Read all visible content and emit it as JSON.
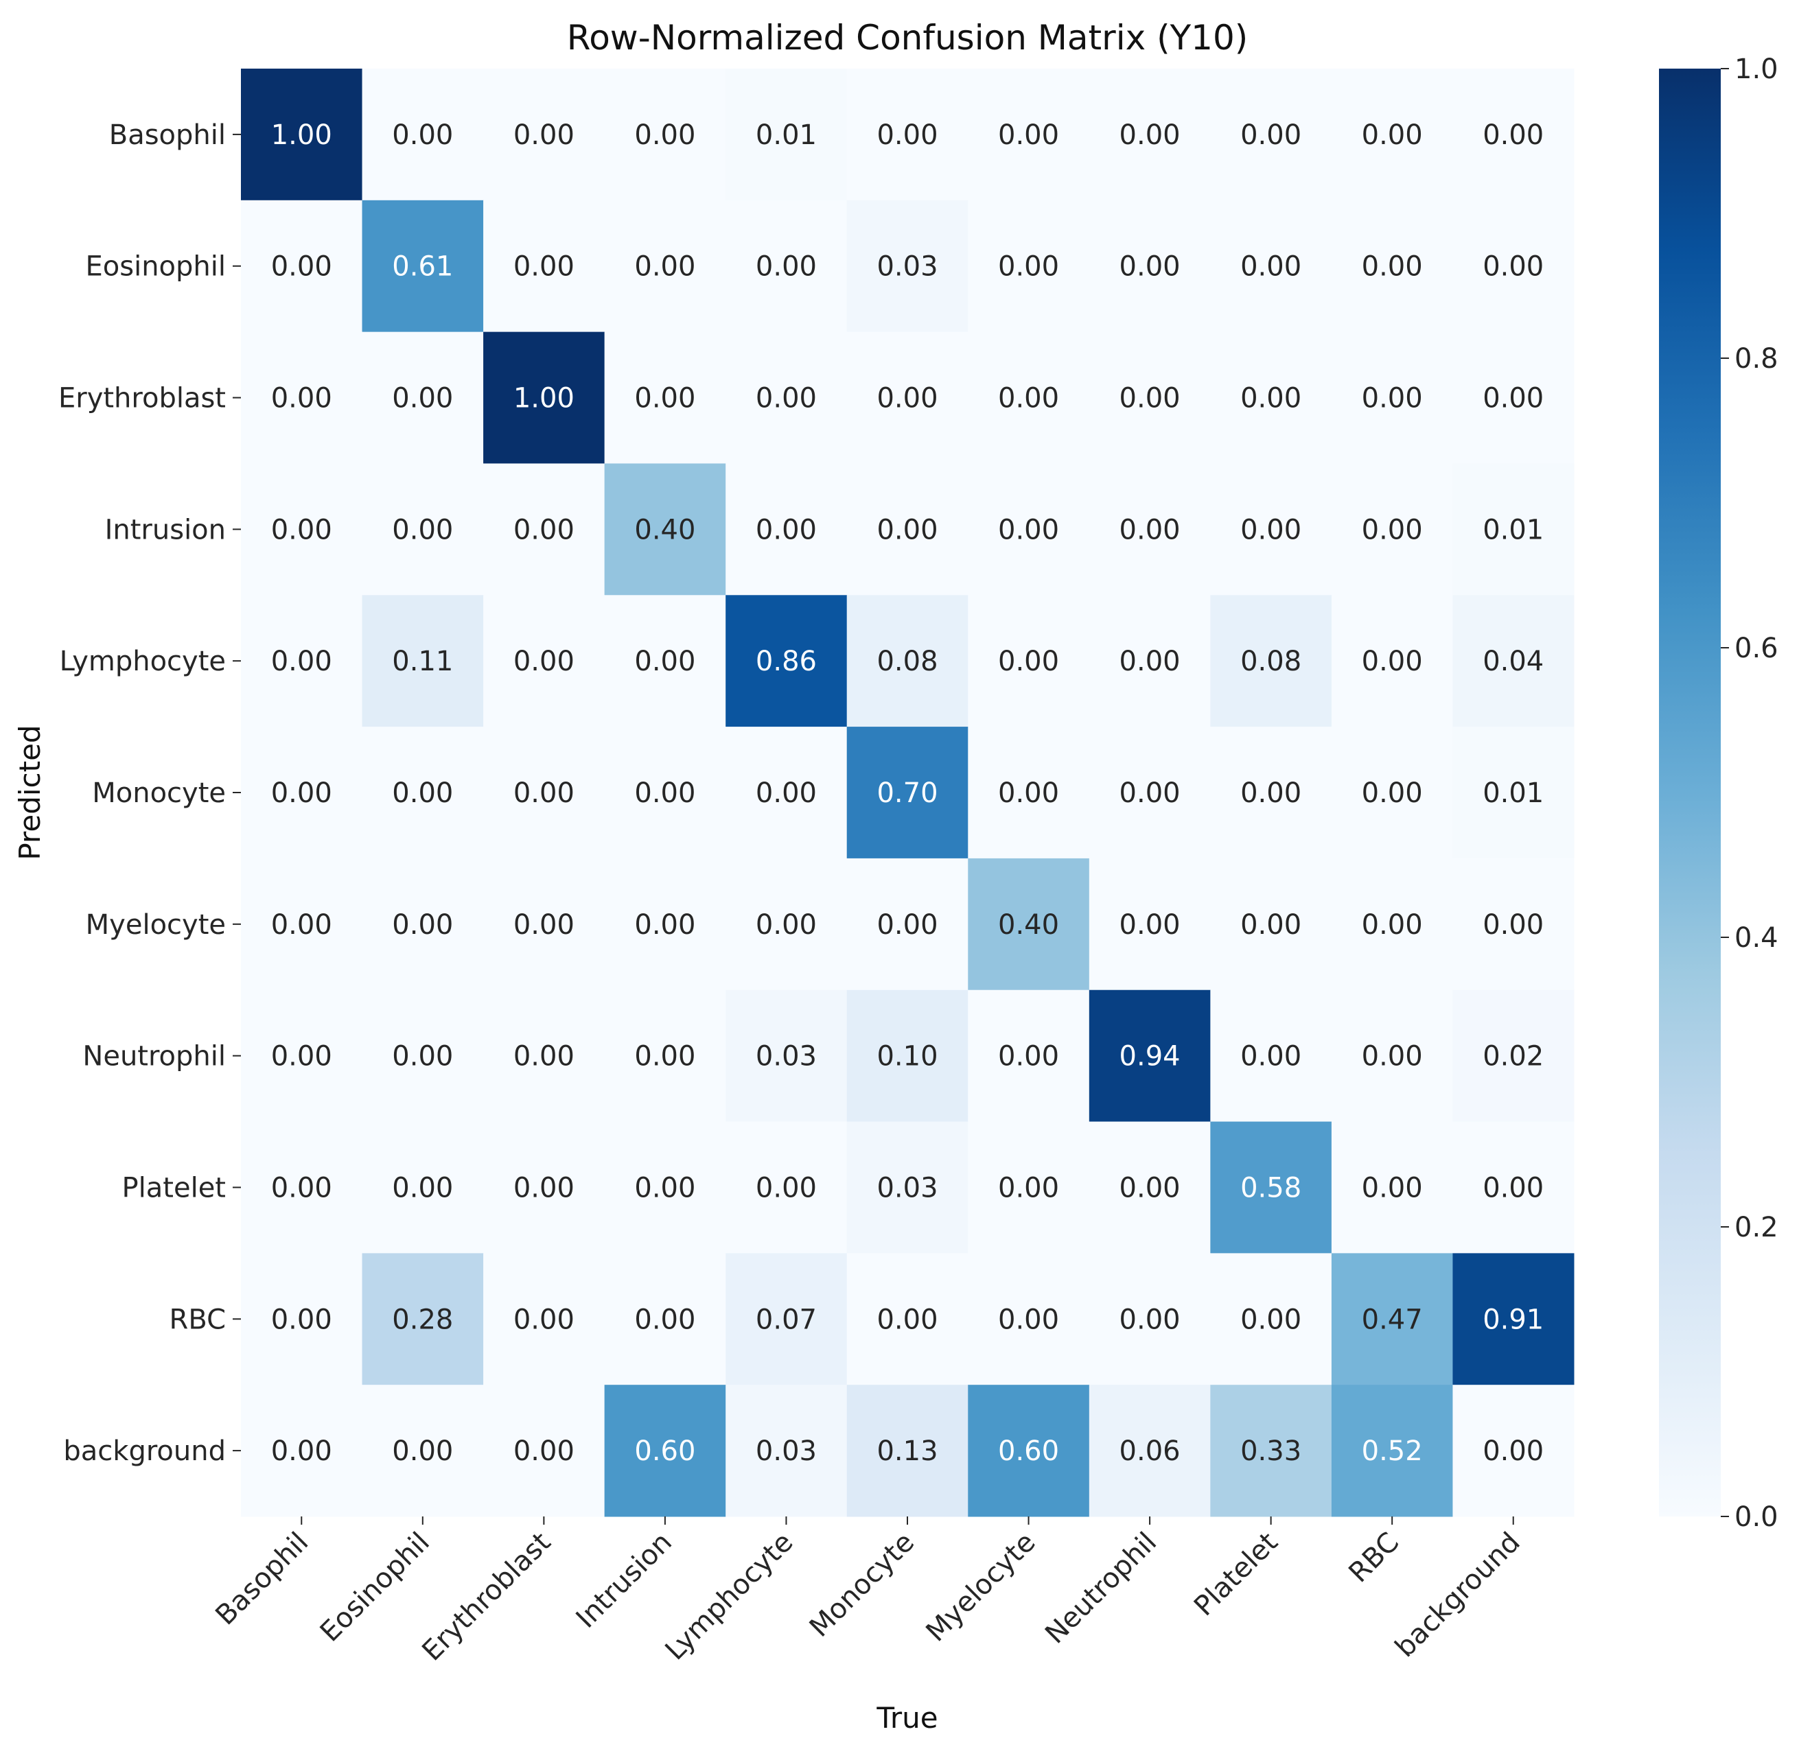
{
  "chart_data": {
    "type": "heatmap",
    "title": "Row-Normalized Confusion Matrix (Y10)",
    "xlabel": "True",
    "ylabel": "Predicted",
    "x_categories": [
      "Basophil",
      "Eosinophil",
      "Erythroblast",
      "Intrusion",
      "Lymphocyte",
      "Monocyte",
      "Myelocyte",
      "Neutrophil",
      "Platelet",
      "RBC",
      "background"
    ],
    "y_categories": [
      "Basophil",
      "Eosinophil",
      "Erythroblast",
      "Intrusion",
      "Lymphocyte",
      "Monocyte",
      "Myelocyte",
      "Neutrophil",
      "Platelet",
      "RBC",
      "background"
    ],
    "values": [
      [
        1.0,
        0.0,
        0.0,
        0.0,
        0.01,
        0.0,
        0.0,
        0.0,
        0.0,
        0.0,
        0.0
      ],
      [
        0.0,
        0.61,
        0.0,
        0.0,
        0.0,
        0.03,
        0.0,
        0.0,
        0.0,
        0.0,
        0.0
      ],
      [
        0.0,
        0.0,
        1.0,
        0.0,
        0.0,
        0.0,
        0.0,
        0.0,
        0.0,
        0.0,
        0.0
      ],
      [
        0.0,
        0.0,
        0.0,
        0.4,
        0.0,
        0.0,
        0.0,
        0.0,
        0.0,
        0.0,
        0.01
      ],
      [
        0.0,
        0.11,
        0.0,
        0.0,
        0.86,
        0.08,
        0.0,
        0.0,
        0.08,
        0.0,
        0.04
      ],
      [
        0.0,
        0.0,
        0.0,
        0.0,
        0.0,
        0.7,
        0.0,
        0.0,
        0.0,
        0.0,
        0.01
      ],
      [
        0.0,
        0.0,
        0.0,
        0.0,
        0.0,
        0.0,
        0.4,
        0.0,
        0.0,
        0.0,
        0.0
      ],
      [
        0.0,
        0.0,
        0.0,
        0.0,
        0.03,
        0.1,
        0.0,
        0.94,
        0.0,
        0.0,
        0.02
      ],
      [
        0.0,
        0.0,
        0.0,
        0.0,
        0.0,
        0.03,
        0.0,
        0.0,
        0.58,
        0.0,
        0.0
      ],
      [
        0.0,
        0.28,
        0.0,
        0.0,
        0.07,
        0.0,
        0.0,
        0.0,
        0.0,
        0.47,
        0.91
      ],
      [
        0.0,
        0.0,
        0.0,
        0.6,
        0.03,
        0.13,
        0.6,
        0.06,
        0.33,
        0.52,
        0.0
      ]
    ],
    "value_format": "0.00",
    "colormap": "Blues",
    "colormap_stops": [
      "#f7fbff",
      "#deebf7",
      "#c6dbef",
      "#9ecae1",
      "#6baed6",
      "#4292c6",
      "#2171b5",
      "#08519c",
      "#08306b"
    ],
    "colorbar": {
      "range": [
        0.0,
        1.0
      ],
      "ticks": [
        "0.0",
        "0.2",
        "0.4",
        "0.6",
        "0.8",
        "1.0"
      ]
    },
    "grid": false
  }
}
